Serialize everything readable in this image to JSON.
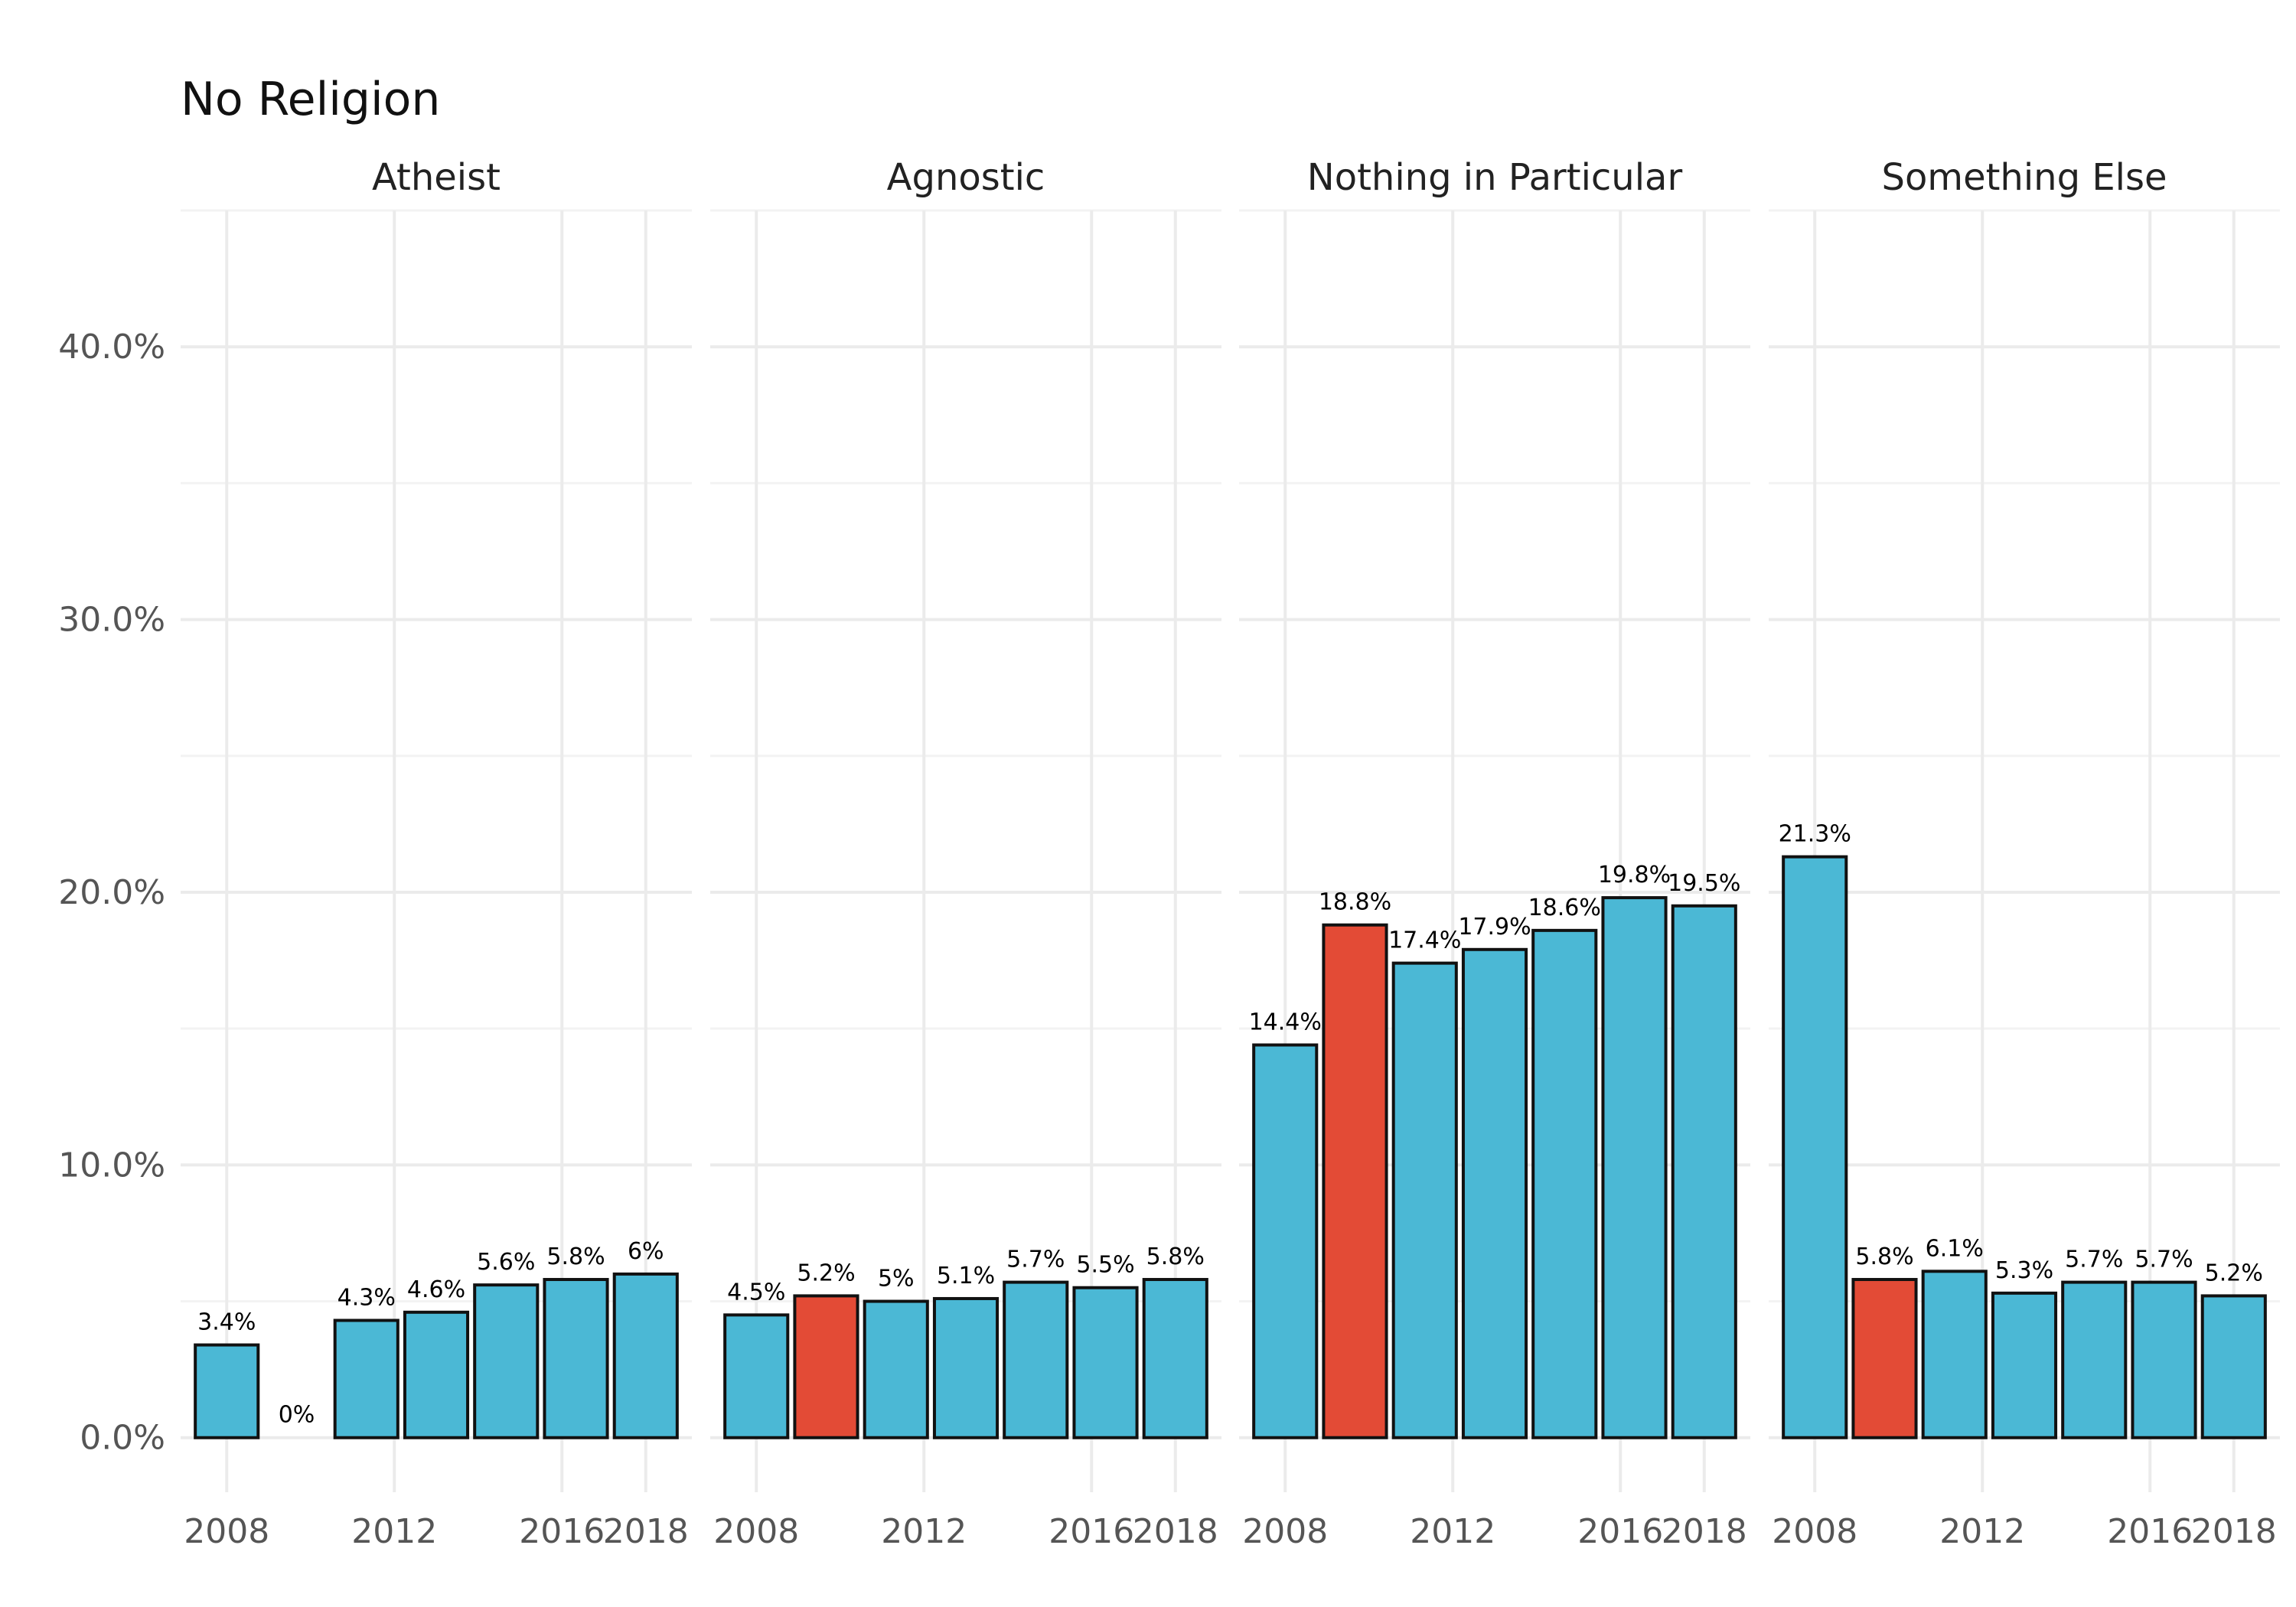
{
  "chart_data": {
    "type": "bar",
    "title": "No Religion",
    "xlabel": "",
    "ylabel": "",
    "ylim": [
      -0.02,
      0.45
    ],
    "y_ticks": [
      0,
      0.1,
      0.2,
      0.3,
      0.4
    ],
    "y_tick_labels": [
      "0.0%",
      "10.0%",
      "20.0%",
      "30.0%",
      "40.0%"
    ],
    "x_ticks": [
      2008,
      2012,
      2016,
      2018
    ],
    "x_tick_labels": [
      "2008",
      "2012",
      "2016",
      "2018"
    ],
    "xlim": [
      2006.9,
      2019.1
    ],
    "grid": true,
    "legend": "none",
    "colors": {
      "default": "#4BB8D5",
      "highlight": "#E34B36",
      "outline": "#111111"
    },
    "panels": [
      {
        "name": "Atheist",
        "bars": [
          {
            "x": 2008,
            "value": 0.034,
            "label": "3.4%",
            "highlight": false
          },
          {
            "x": 2010,
            "value": 0.0,
            "label": "0%",
            "highlight": true
          },
          {
            "x": 2012,
            "value": 0.043,
            "label": "4.3%",
            "highlight": false
          },
          {
            "x": 2014,
            "value": 0.046,
            "label": "4.6%",
            "highlight": false
          },
          {
            "x": 2016,
            "value": 0.056,
            "label": "5.6%",
            "highlight": false
          },
          {
            "x": 2017,
            "value": 0.058,
            "label": "5.8%",
            "highlight": false
          },
          {
            "x": 2018,
            "value": 0.06,
            "label": "6%",
            "highlight": false
          }
        ]
      },
      {
        "name": "Agnostic",
        "bars": [
          {
            "x": 2008,
            "value": 0.045,
            "label": "4.5%",
            "highlight": false
          },
          {
            "x": 2010,
            "value": 0.052,
            "label": "5.2%",
            "highlight": true
          },
          {
            "x": 2012,
            "value": 0.05,
            "label": "5%",
            "highlight": false
          },
          {
            "x": 2014,
            "value": 0.051,
            "label": "5.1%",
            "highlight": false
          },
          {
            "x": 2016,
            "value": 0.057,
            "label": "5.7%",
            "highlight": false
          },
          {
            "x": 2017,
            "value": 0.055,
            "label": "5.5%",
            "highlight": false
          },
          {
            "x": 2018,
            "value": 0.058,
            "label": "5.8%",
            "highlight": false
          }
        ]
      },
      {
        "name": "Nothing in Particular",
        "bars": [
          {
            "x": 2008,
            "value": 0.144,
            "label": "14.4%",
            "highlight": false
          },
          {
            "x": 2010,
            "value": 0.188,
            "label": "18.8%",
            "highlight": true
          },
          {
            "x": 2012,
            "value": 0.174,
            "label": "17.4%",
            "highlight": false
          },
          {
            "x": 2014,
            "value": 0.179,
            "label": "17.9%",
            "highlight": false
          },
          {
            "x": 2016,
            "value": 0.186,
            "label": "18.6%",
            "highlight": false
          },
          {
            "x": 2017,
            "value": 0.198,
            "label": "19.8%",
            "highlight": false
          },
          {
            "x": 2018,
            "value": 0.195,
            "label": "19.5%",
            "highlight": false
          }
        ]
      },
      {
        "name": "Something Else",
        "bars": [
          {
            "x": 2008,
            "value": 0.213,
            "label": "21.3%",
            "highlight": false
          },
          {
            "x": 2010,
            "value": 0.058,
            "label": "5.8%",
            "highlight": true
          },
          {
            "x": 2012,
            "value": 0.061,
            "label": "6.1%",
            "highlight": false
          },
          {
            "x": 2014,
            "value": 0.053,
            "label": "5.3%",
            "highlight": false
          },
          {
            "x": 2016,
            "value": 0.057,
            "label": "5.7%",
            "highlight": false
          },
          {
            "x": 2017,
            "value": 0.057,
            "label": "5.7%",
            "highlight": false
          },
          {
            "x": 2018,
            "value": 0.052,
            "label": "5.2%",
            "highlight": false
          }
        ]
      }
    ]
  }
}
